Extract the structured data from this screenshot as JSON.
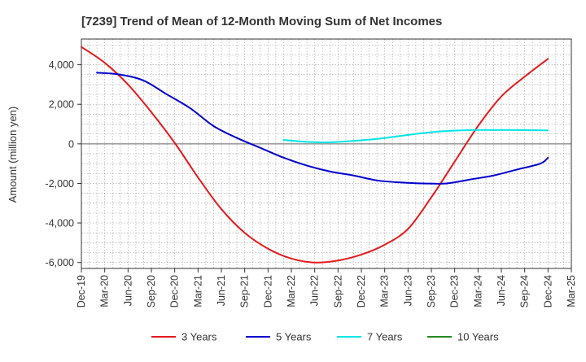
{
  "chart_data": {
    "type": "line",
    "title": "[7239]  Trend of Mean of 12-Month Moving Sum of Net Incomes",
    "xlabel": "",
    "ylabel": "Amount (million yen)",
    "ylim": [
      -6300,
      5300
    ],
    "yticks": [
      -6000,
      -4000,
      -2000,
      0,
      2000,
      4000
    ],
    "ytick_labels": [
      "-6,000",
      "-4,000",
      "-2,000",
      "0",
      "2,000",
      "4,000"
    ],
    "x_start": "2019-12",
    "x_end": "2025-03",
    "xticks": [
      "Dec-19",
      "Mar-20",
      "Jun-20",
      "Sep-20",
      "Dec-20",
      "Mar-21",
      "Jun-21",
      "Sep-21",
      "Dec-21",
      "Mar-22",
      "Jun-22",
      "Sep-22",
      "Dec-22",
      "Mar-23",
      "Jun-23",
      "Sep-23",
      "Dec-23",
      "Mar-24",
      "Jun-24",
      "Sep-24",
      "Dec-24",
      "Mar-25"
    ],
    "grid": true,
    "legend_position": "bottom",
    "series": [
      {
        "name": "3 Years",
        "color": "#e31a1c",
        "points": [
          [
            "2019-12",
            4900
          ],
          [
            "2020-03",
            4100
          ],
          [
            "2020-06",
            3000
          ],
          [
            "2020-09",
            1600
          ],
          [
            "2020-12",
            50
          ],
          [
            "2021-03",
            -1700
          ],
          [
            "2021-06",
            -3300
          ],
          [
            "2021-09",
            -4500
          ],
          [
            "2021-12",
            -5300
          ],
          [
            "2022-03",
            -5800
          ],
          [
            "2022-06",
            -6000
          ],
          [
            "2022-09",
            -5900
          ],
          [
            "2022-12",
            -5600
          ],
          [
            "2023-03",
            -5100
          ],
          [
            "2023-06",
            -4300
          ],
          [
            "2023-09",
            -2700
          ],
          [
            "2023-12",
            -900
          ],
          [
            "2024-03",
            900
          ],
          [
            "2024-06",
            2400
          ],
          [
            "2024-09",
            3400
          ],
          [
            "2024-12",
            4300
          ]
        ]
      },
      {
        "name": "5 Years",
        "color": "#0000cc",
        "points": [
          [
            "2020-02",
            3600
          ],
          [
            "2020-05",
            3500
          ],
          [
            "2020-08",
            3200
          ],
          [
            "2020-11",
            2500
          ],
          [
            "2021-02",
            1800
          ],
          [
            "2021-05",
            900
          ],
          [
            "2021-08",
            300
          ],
          [
            "2021-11",
            -200
          ],
          [
            "2022-02",
            -700
          ],
          [
            "2022-05",
            -1100
          ],
          [
            "2022-08",
            -1400
          ],
          [
            "2022-11",
            -1600
          ],
          [
            "2023-02",
            -1850
          ],
          [
            "2023-05",
            -1950
          ],
          [
            "2023-08",
            -2000
          ],
          [
            "2023-11",
            -2000
          ],
          [
            "2024-02",
            -1800
          ],
          [
            "2024-05",
            -1600
          ],
          [
            "2024-08",
            -1300
          ],
          [
            "2024-11",
            -1000
          ],
          [
            "2024-12",
            -700
          ]
        ]
      },
      {
        "name": "7 Years",
        "color": "#00e5e5",
        "points": [
          [
            "2022-02",
            200
          ],
          [
            "2022-05",
            100
          ],
          [
            "2022-08",
            80
          ],
          [
            "2022-11",
            150
          ],
          [
            "2023-02",
            250
          ],
          [
            "2023-05",
            400
          ],
          [
            "2023-08",
            550
          ],
          [
            "2023-11",
            650
          ],
          [
            "2024-02",
            700
          ],
          [
            "2024-05",
            700
          ],
          [
            "2024-08",
            700
          ],
          [
            "2024-12",
            680
          ]
        ]
      },
      {
        "name": "10 Years",
        "color": "#228b22",
        "points": []
      }
    ]
  }
}
